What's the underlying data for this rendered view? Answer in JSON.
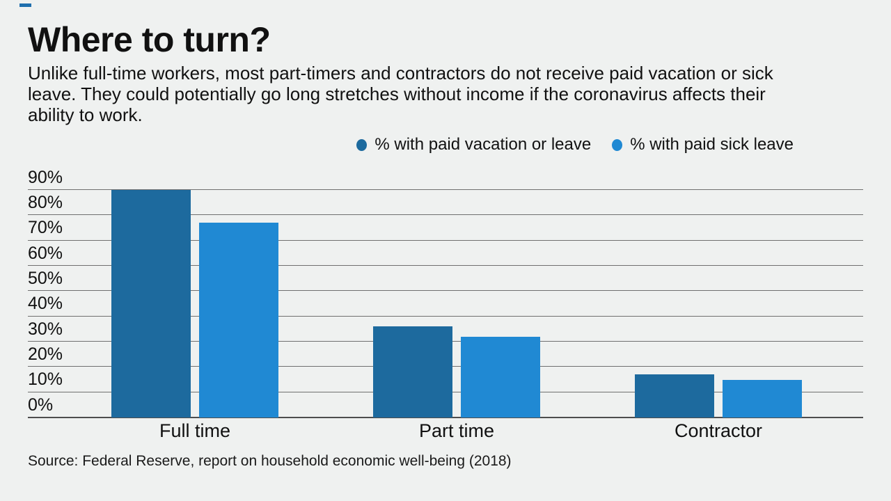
{
  "page": {
    "background": "#eff1f0",
    "text_color": "#111111"
  },
  "brand": {
    "accent_color": "#1f6fad"
  },
  "header": {
    "title": "Where to turn?",
    "subtitle": "Unlike full-time workers, most part-timers and contractors do not receive paid vacation or sick leave. They could potentially go long stretches without income if the coronavirus affects their ability to work.",
    "subtitle_lines": [
      "Unlike full-time workers, most part-timers and contractors do not receive paid vacation or sick",
      "leave. They could potentially go long stretches without income if the coronavirus affects their",
      "ability to work."
    ]
  },
  "legend": {
    "items": [
      {
        "label": "% with paid vacation or leave",
        "color": "#1d6a9e"
      },
      {
        "label": "% with paid sick leave",
        "color": "#2089d3"
      }
    ]
  },
  "chart_data": {
    "type": "bar",
    "title": "Where to turn?",
    "categories": [
      "Full time",
      "Part time",
      "Contractor"
    ],
    "series": [
      {
        "name": "% with paid vacation or leave",
        "color": "#1d6a9e",
        "values": [
          90,
          36,
          17
        ]
      },
      {
        "name": "% with paid sick leave",
        "color": "#2089d3",
        "values": [
          77,
          32,
          15
        ]
      }
    ],
    "xlabel": "",
    "ylabel": "",
    "ylim": [
      0,
      90
    ],
    "ytick_labels": [
      "0%",
      "10%",
      "20%",
      "30%",
      "40%",
      "50%",
      "60%",
      "70%",
      "80%",
      "90%"
    ],
    "ytick_values": [
      0,
      10,
      20,
      30,
      40,
      50,
      60,
      70,
      80,
      90
    ],
    "grid": true,
    "gridline_color": "#6f6f6f",
    "axis_color": "#4d4d4d",
    "legend_position": "top-right"
  },
  "footer": {
    "source": "Source: Federal Reserve, report on household economic well-being (2018)"
  }
}
